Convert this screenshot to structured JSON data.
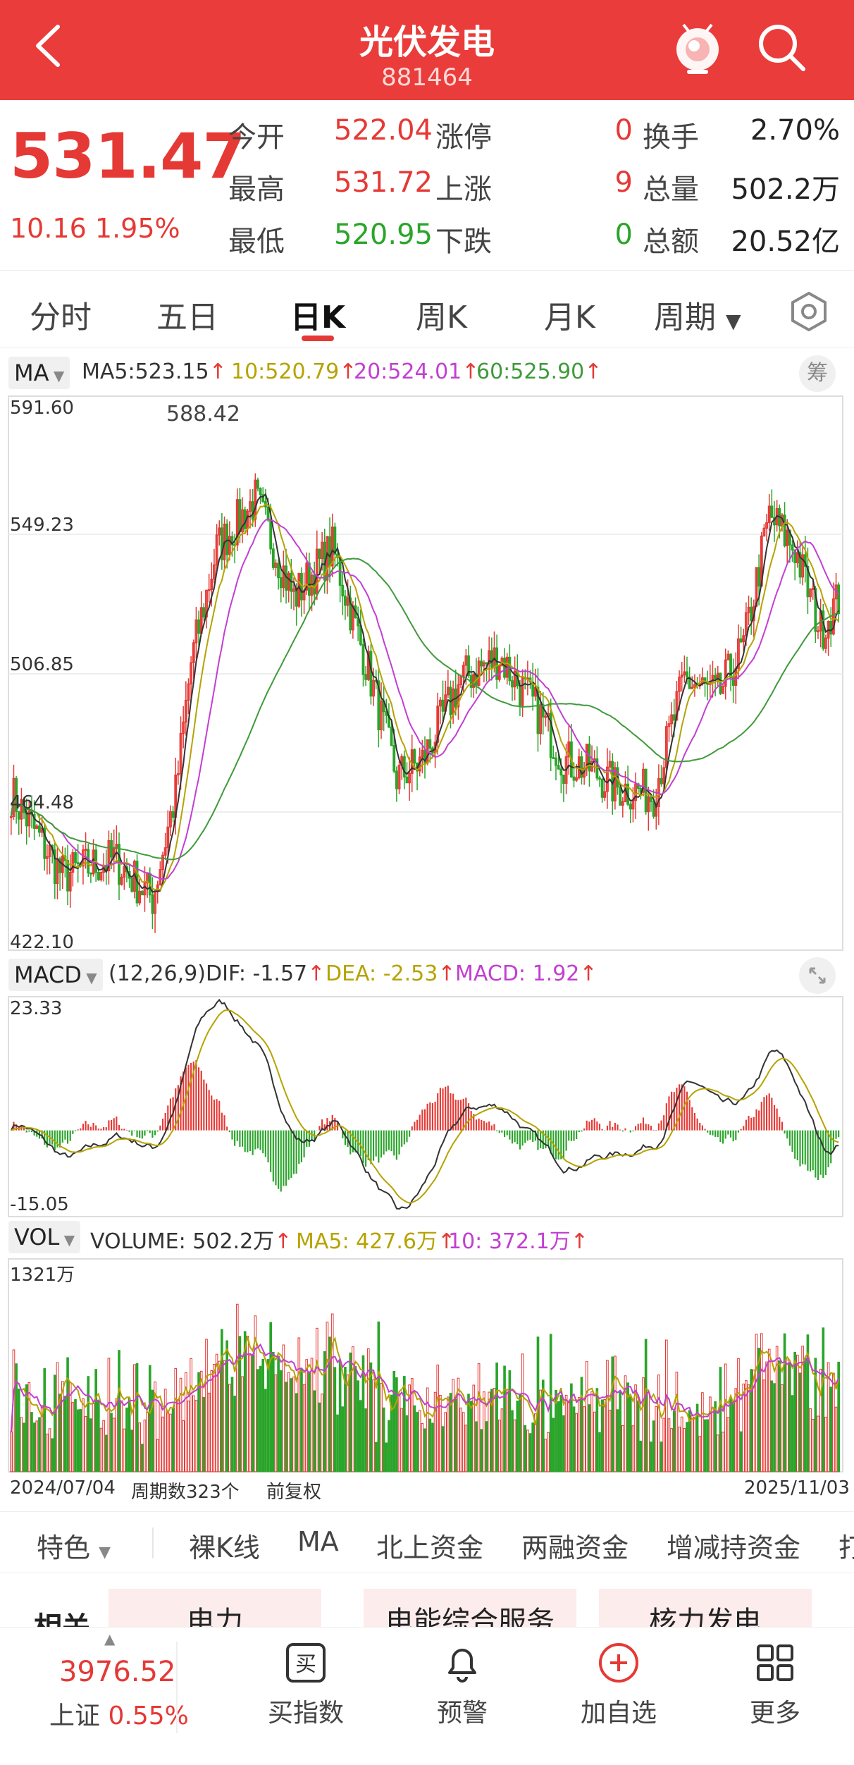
{
  "header": {
    "title": "光伏发电",
    "code": "881464",
    "back_icon": "back-arrow-icon",
    "robot_icon": "robot-icon",
    "search_icon": "search-icon"
  },
  "quote": {
    "price": "531.47",
    "change": "10.16",
    "change_pct": "1.95%",
    "rows": [
      {
        "l1": "今开",
        "v1": "522.04",
        "v1_color": "#e53935",
        "l2": "涨停",
        "v2": "0",
        "v2_color": "#e53935",
        "l3": "换手",
        "v3": "2.70%"
      },
      {
        "l1": "最高",
        "v1": "531.72",
        "v1_color": "#e53935",
        "l2": "上涨",
        "v2": "9",
        "v2_color": "#e53935",
        "l3": "总量",
        "v3": "502.2万"
      },
      {
        "l1": "最低",
        "v1": "520.95",
        "v1_color": "#2aa52a",
        "l2": "下跌",
        "v2": "0",
        "v2_color": "#2aa52a",
        "l3": "总额",
        "v3": "20.52亿"
      }
    ]
  },
  "tabs": [
    "分时",
    "五日",
    "日K",
    "周K",
    "月K",
    "周期"
  ],
  "settings_icon": "hexagon-settings-icon",
  "chart": {
    "ma_selector": "MA",
    "ma_legend": {
      "ma5": "MA5:523.15",
      "ma10": "10:520.79",
      "ma20": "20:524.01",
      "ma60": "60:525.90"
    },
    "chip_label": "筹",
    "price_ticks": [
      "591.60",
      "549.23",
      "506.85",
      "464.48",
      "422.10"
    ],
    "peak_label": "588.42",
    "macd_selector": "MACD",
    "macd_legend": {
      "params": "(12,26,9)",
      "dif": "DIF: -1.57",
      "dea": "DEA: -2.53",
      "macd": "MACD: 1.92"
    },
    "macd_ticks": [
      "23.33",
      "-15.05"
    ],
    "vol_selector": "VOL",
    "vol_legend": {
      "volume": "VOLUME: 502.2万",
      "ma5": "MA5: 427.6万",
      "ma10": "10: 372.1万"
    },
    "vol_tick": "1321万",
    "start_date": "2024/07/04",
    "period_count": "周期数323个",
    "adjust": "前复权",
    "end_date": "2025/11/03",
    "colors": {
      "up": "#e53935",
      "down": "#2aa52a",
      "ma5": "#333333",
      "ma10": "#b5a300",
      "ma20": "#c23fd1",
      "ma60": "#3f9a3a"
    }
  },
  "chart_data": {
    "type": "candlestick",
    "price_range": [
      422.1,
      591.6
    ],
    "macd_range": [
      -15.05,
      23.33
    ],
    "volume_max": "1321万",
    "x_start": "2024/07/04",
    "x_end": "2025/11/03",
    "count": 323,
    "last": {
      "close": 531.47,
      "ma5": 523.15,
      "ma10": 520.79,
      "ma20": 524.01,
      "ma60": 525.9,
      "dif": -1.57,
      "dea": -2.53,
      "macd": 1.92
    }
  },
  "features": [
    "特色",
    "裸K线",
    "MA",
    "北上资金",
    "两融资金",
    "增减持资金",
    "打"
  ],
  "related": {
    "label": "相关",
    "tags": [
      "电力",
      "电能综合服务",
      "核力发电"
    ]
  },
  "bottom": {
    "index_value": "3976.52",
    "index_name": "上证",
    "index_pct": "0.55%",
    "items": [
      {
        "label": "买指数",
        "icon": "buy-index-icon"
      },
      {
        "label": "预警",
        "icon": "bell-icon"
      },
      {
        "label": "加自选",
        "icon": "add-circle-icon"
      },
      {
        "label": "更多",
        "icon": "grid-icon"
      }
    ]
  }
}
